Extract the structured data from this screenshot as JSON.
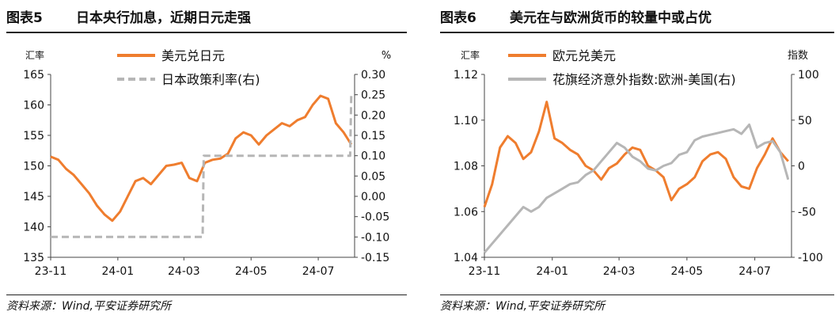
{
  "panels": [
    {
      "num": "图表5",
      "title": "日本央行加息，近期日元走强",
      "source": "资料来源：Wind,平安证券研究所"
    },
    {
      "num": "图表6",
      "title": "美元在与欧洲货币的较量中或占优",
      "source": "资料来源：Wind,平安证券研究所"
    }
  ],
  "chart_data": [
    {
      "type": "line",
      "x_ticks": [
        "23-11",
        "24-01",
        "24-03",
        "24-05",
        "24-07"
      ],
      "left_unit": "汇率",
      "right_unit": "%",
      "ylim": [
        135,
        165
      ],
      "y_ticks": [
        "135",
        "140",
        "145",
        "150",
        "155",
        "160",
        "165"
      ],
      "y2lim": [
        -0.15,
        0.3
      ],
      "y2_ticks": [
        "-0.15",
        "-0.10",
        "-0.05",
        "0.00",
        "0.05",
        "0.10",
        "0.15",
        "0.20",
        "0.25",
        "0.30"
      ],
      "legend_placement": "top-center",
      "colors": {
        "primary": "#ef7d2e",
        "secondary": "#b6b6b6"
      },
      "series": [
        {
          "name": "美元兑日元",
          "axis": "left",
          "style": "solid",
          "color": "#ef7d2e",
          "x": [
            "2023-11-01",
            "2023-11-08",
            "2023-11-15",
            "2023-11-22",
            "2023-11-29",
            "2023-12-06",
            "2023-12-13",
            "2023-12-20",
            "2023-12-27",
            "2024-01-03",
            "2024-01-10",
            "2024-01-17",
            "2024-01-24",
            "2024-01-31",
            "2024-02-07",
            "2024-02-14",
            "2024-02-21",
            "2024-02-28",
            "2024-03-06",
            "2024-03-13",
            "2024-03-20",
            "2024-03-27",
            "2024-04-03",
            "2024-04-10",
            "2024-04-17",
            "2024-04-24",
            "2024-05-01",
            "2024-05-08",
            "2024-05-15",
            "2024-05-22",
            "2024-05-29",
            "2024-06-05",
            "2024-06-12",
            "2024-06-19",
            "2024-06-26",
            "2024-07-03",
            "2024-07-10",
            "2024-07-17",
            "2024-07-24",
            "2024-07-31"
          ],
          "values": [
            151.5,
            151.0,
            149.5,
            148.5,
            147.0,
            145.5,
            143.5,
            142.0,
            141.0,
            142.5,
            145.0,
            147.5,
            148.0,
            147.0,
            148.5,
            150.0,
            150.2,
            150.5,
            148.0,
            147.5,
            150.5,
            151.0,
            151.2,
            152.0,
            154.5,
            155.5,
            155.0,
            153.5,
            155.0,
            156.0,
            157.0,
            156.5,
            157.5,
            158.0,
            160.0,
            161.5,
            161.0,
            157.0,
            155.5,
            153.5
          ]
        },
        {
          "name": "日本政策利率(右)",
          "axis": "right",
          "style": "dashed",
          "color": "#b6b6b6",
          "x": [
            "2023-11-01",
            "2024-03-18",
            "2024-03-19",
            "2024-07-30",
            "2024-07-31"
          ],
          "values": [
            -0.1,
            -0.1,
            0.1,
            0.1,
            0.25
          ]
        }
      ]
    },
    {
      "type": "line",
      "x_ticks": [
        "23-11",
        "24-01",
        "24-03",
        "24-05",
        "24-07"
      ],
      "left_unit": "汇率",
      "right_unit": "指数",
      "ylim": [
        1.04,
        1.12
      ],
      "y_ticks": [
        "1.04",
        "1.06",
        "1.08",
        "1.10",
        "1.12"
      ],
      "y2lim": [
        -100,
        100
      ],
      "y2_ticks": [
        "-100",
        "-50",
        "0",
        "50",
        "100"
      ],
      "legend_placement": "top-center",
      "colors": {
        "primary": "#ef7d2e",
        "secondary": "#b6b6b6"
      },
      "series": [
        {
          "name": "欧元兑美元",
          "axis": "left",
          "style": "solid",
          "color": "#ef7d2e",
          "x": [
            "2023-11-01",
            "2023-11-08",
            "2023-11-15",
            "2023-11-22",
            "2023-11-29",
            "2023-12-06",
            "2023-12-13",
            "2023-12-20",
            "2023-12-27",
            "2024-01-03",
            "2024-01-10",
            "2024-01-17",
            "2024-01-24",
            "2024-01-31",
            "2024-02-07",
            "2024-02-14",
            "2024-02-21",
            "2024-02-28",
            "2024-03-06",
            "2024-03-13",
            "2024-03-20",
            "2024-03-27",
            "2024-04-03",
            "2024-04-10",
            "2024-04-17",
            "2024-04-24",
            "2024-05-01",
            "2024-05-08",
            "2024-05-15",
            "2024-05-22",
            "2024-05-29",
            "2024-06-05",
            "2024-06-12",
            "2024-06-19",
            "2024-06-26",
            "2024-07-03",
            "2024-07-10",
            "2024-07-17",
            "2024-07-24",
            "2024-07-31"
          ],
          "values": [
            1.062,
            1.072,
            1.088,
            1.093,
            1.09,
            1.083,
            1.086,
            1.095,
            1.108,
            1.092,
            1.09,
            1.087,
            1.085,
            1.08,
            1.078,
            1.074,
            1.079,
            1.081,
            1.085,
            1.088,
            1.087,
            1.08,
            1.078,
            1.075,
            1.065,
            1.07,
            1.072,
            1.075,
            1.082,
            1.085,
            1.086,
            1.083,
            1.075,
            1.071,
            1.07,
            1.079,
            1.085,
            1.092,
            1.086,
            1.082
          ]
        },
        {
          "name": "花旗经济意外指数:欧洲-美国(右)",
          "axis": "right",
          "style": "solid",
          "color": "#b6b6b6",
          "x": [
            "2023-11-01",
            "2023-11-08",
            "2023-11-15",
            "2023-11-22",
            "2023-11-29",
            "2023-12-06",
            "2023-12-13",
            "2023-12-20",
            "2023-12-27",
            "2024-01-03",
            "2024-01-10",
            "2024-01-17",
            "2024-01-24",
            "2024-01-31",
            "2024-02-07",
            "2024-02-14",
            "2024-02-21",
            "2024-02-28",
            "2024-03-06",
            "2024-03-13",
            "2024-03-20",
            "2024-03-27",
            "2024-04-03",
            "2024-04-10",
            "2024-04-17",
            "2024-04-24",
            "2024-05-01",
            "2024-05-08",
            "2024-05-15",
            "2024-05-22",
            "2024-05-29",
            "2024-06-05",
            "2024-06-12",
            "2024-06-19",
            "2024-06-26",
            "2024-07-03",
            "2024-07-10",
            "2024-07-17",
            "2024-07-24",
            "2024-07-31"
          ],
          "values": [
            -95,
            -85,
            -75,
            -65,
            -55,
            -45,
            -50,
            -45,
            -35,
            -30,
            -25,
            -20,
            -18,
            -10,
            -5,
            5,
            15,
            25,
            20,
            10,
            5,
            -3,
            -5,
            0,
            3,
            12,
            15,
            28,
            32,
            34,
            36,
            38,
            40,
            35,
            45,
            20,
            25,
            27,
            15,
            -15
          ]
        }
      ]
    }
  ]
}
